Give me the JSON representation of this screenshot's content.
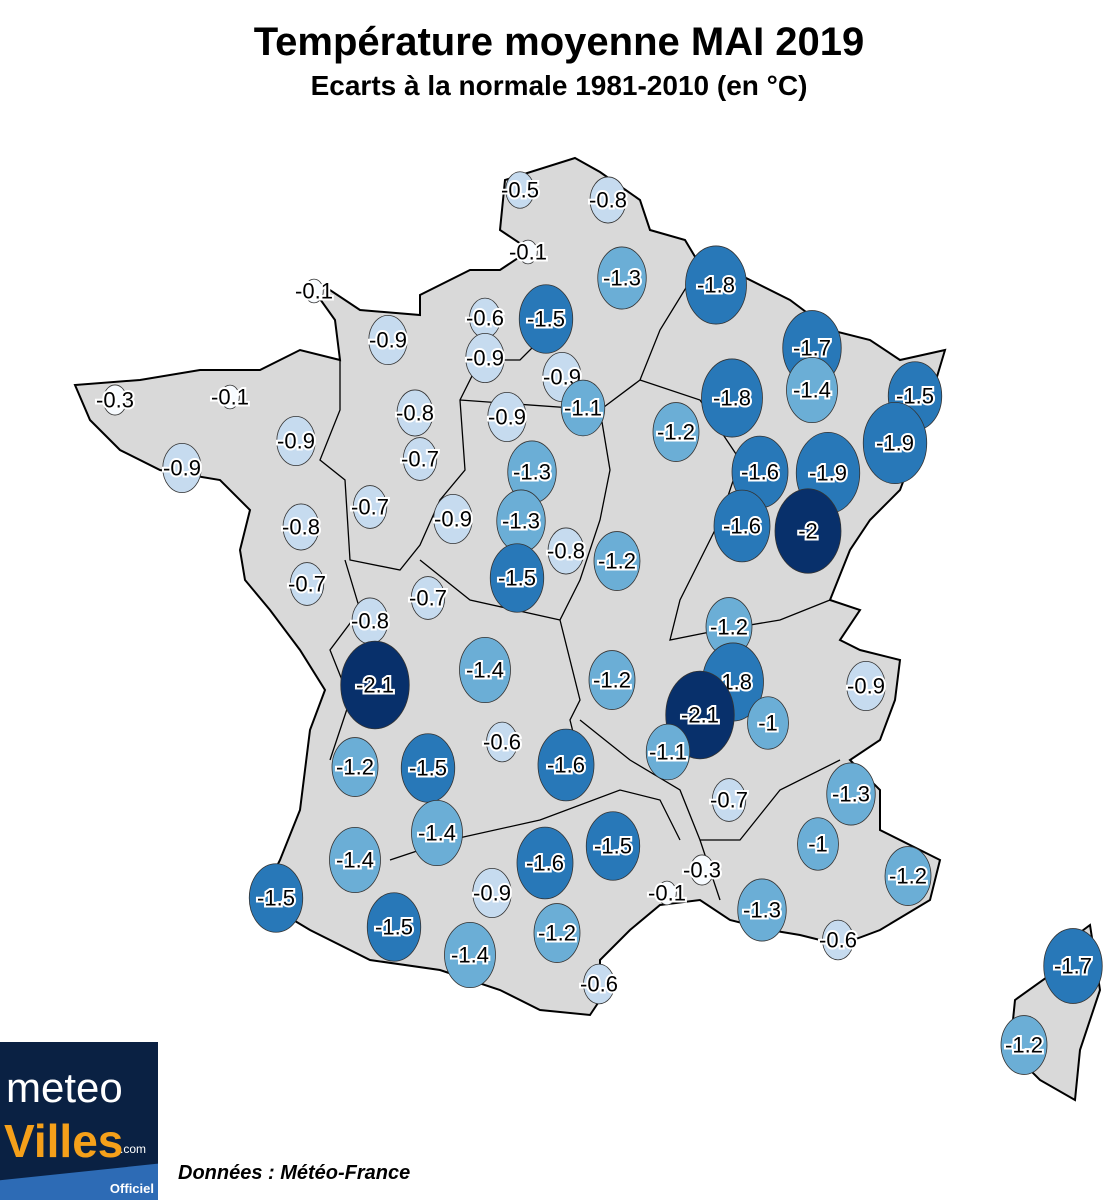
{
  "title": "Température moyenne MAI 2019",
  "subtitle": "Ecarts à la normale 1981-2010 (en °C)",
  "source": "Données : Météo-France",
  "logo": {
    "line1": "meteo",
    "line2": "Villes",
    "suffix": ".com",
    "badge": "Officiel"
  },
  "colors": {
    "land": "#d9d9d9",
    "near_zero": "#f7fbff",
    "light": "#c6dbef",
    "medium": "#6baed6",
    "strong": "#2878b8",
    "very_strong": "#08306b"
  },
  "stations": [
    {
      "label": "-0.5",
      "value": -0.5
    },
    {
      "label": "-0.8",
      "value": -0.8
    },
    {
      "label": "-0.1",
      "value": -0.1
    },
    {
      "label": "-1.3",
      "value": -1.3
    },
    {
      "label": "-1.8",
      "value": -1.8
    },
    {
      "label": "-0.1",
      "value": -0.1
    },
    {
      "label": "-0.9",
      "value": -0.9
    },
    {
      "label": "-0.6",
      "value": -0.6
    },
    {
      "label": "-1.5",
      "value": -1.5
    },
    {
      "label": "-0.9",
      "value": -0.9
    },
    {
      "label": "-1.7",
      "value": -1.7
    },
    {
      "label": "-0.9",
      "value": -0.9
    },
    {
      "label": "-1.4",
      "value": -1.4
    },
    {
      "label": "-1.5",
      "value": -1.5
    },
    {
      "label": "-0.3",
      "value": -0.3
    },
    {
      "label": "-0.1",
      "value": -0.1
    },
    {
      "label": "-1.1",
      "value": -1.1
    },
    {
      "label": "-0.8",
      "value": -0.8
    },
    {
      "label": "-1.8",
      "value": -1.8
    },
    {
      "label": "-0.9",
      "value": -0.9
    },
    {
      "label": "-0.9",
      "value": -0.9
    },
    {
      "label": "-1.2",
      "value": -1.2
    },
    {
      "label": "-1.9",
      "value": -1.9
    },
    {
      "label": "-0.9",
      "value": -0.9
    },
    {
      "label": "-0.7",
      "value": -0.7
    },
    {
      "label": "-1.3",
      "value": -1.3
    },
    {
      "label": "-1.6",
      "value": -1.6
    },
    {
      "label": "-1.9",
      "value": -1.9
    },
    {
      "label": "-0.7",
      "value": -0.7
    },
    {
      "label": "-0.9",
      "value": -0.9
    },
    {
      "label": "-1.3",
      "value": -1.3
    },
    {
      "label": "-0.8",
      "value": -0.8
    },
    {
      "label": "-1.6",
      "value": -1.6
    },
    {
      "label": "-2",
      "value": -2.0
    },
    {
      "label": "-0.8",
      "value": -0.8
    },
    {
      "label": "-1.2",
      "value": -1.2
    },
    {
      "label": "-0.7",
      "value": -0.7
    },
    {
      "label": "-1.5",
      "value": -1.5
    },
    {
      "label": "-0.7",
      "value": -0.7
    },
    {
      "label": "-0.8",
      "value": -0.8
    },
    {
      "label": "-1.2",
      "value": -1.2
    },
    {
      "label": "-1.4",
      "value": -1.4
    },
    {
      "label": "-1.2",
      "value": -1.2
    },
    {
      "label": "-1.8",
      "value": -1.8
    },
    {
      "label": "-0.9",
      "value": -0.9
    },
    {
      "label": "-2.1",
      "value": -2.1
    },
    {
      "label": "-2.1",
      "value": -2.1
    },
    {
      "label": "-1",
      "value": -1.0
    },
    {
      "label": "-1.2",
      "value": -1.2
    },
    {
      "label": "-1.5",
      "value": -1.5
    },
    {
      "label": "-0.6",
      "value": -0.6
    },
    {
      "label": "-1.6",
      "value": -1.6
    },
    {
      "label": "-1.1",
      "value": -1.1
    },
    {
      "label": "-0.7",
      "value": -0.7
    },
    {
      "label": "-1.3",
      "value": -1.3
    },
    {
      "label": "-1.4",
      "value": -1.4
    },
    {
      "label": "-1.4",
      "value": -1.4
    },
    {
      "label": "-1.6",
      "value": -1.6
    },
    {
      "label": "-1.5",
      "value": -1.5
    },
    {
      "label": "-1",
      "value": -1.0
    },
    {
      "label": "-0.3",
      "value": -0.3
    },
    {
      "label": "-1.2",
      "value": -1.2
    },
    {
      "label": "-1.5",
      "value": -1.5
    },
    {
      "label": "-0.9",
      "value": -0.9
    },
    {
      "label": "-0.1",
      "value": -0.1
    },
    {
      "label": "-1.5",
      "value": -1.5
    },
    {
      "label": "-1.3",
      "value": -1.3
    },
    {
      "label": "-1.2",
      "value": -1.2
    },
    {
      "label": "-1.4",
      "value": -1.4
    },
    {
      "label": "-0.6",
      "value": -0.6
    },
    {
      "label": "-0.6",
      "value": -0.6
    },
    {
      "label": "-1.7",
      "value": -1.7
    },
    {
      "label": "-1.2",
      "value": -1.2
    }
  ]
}
